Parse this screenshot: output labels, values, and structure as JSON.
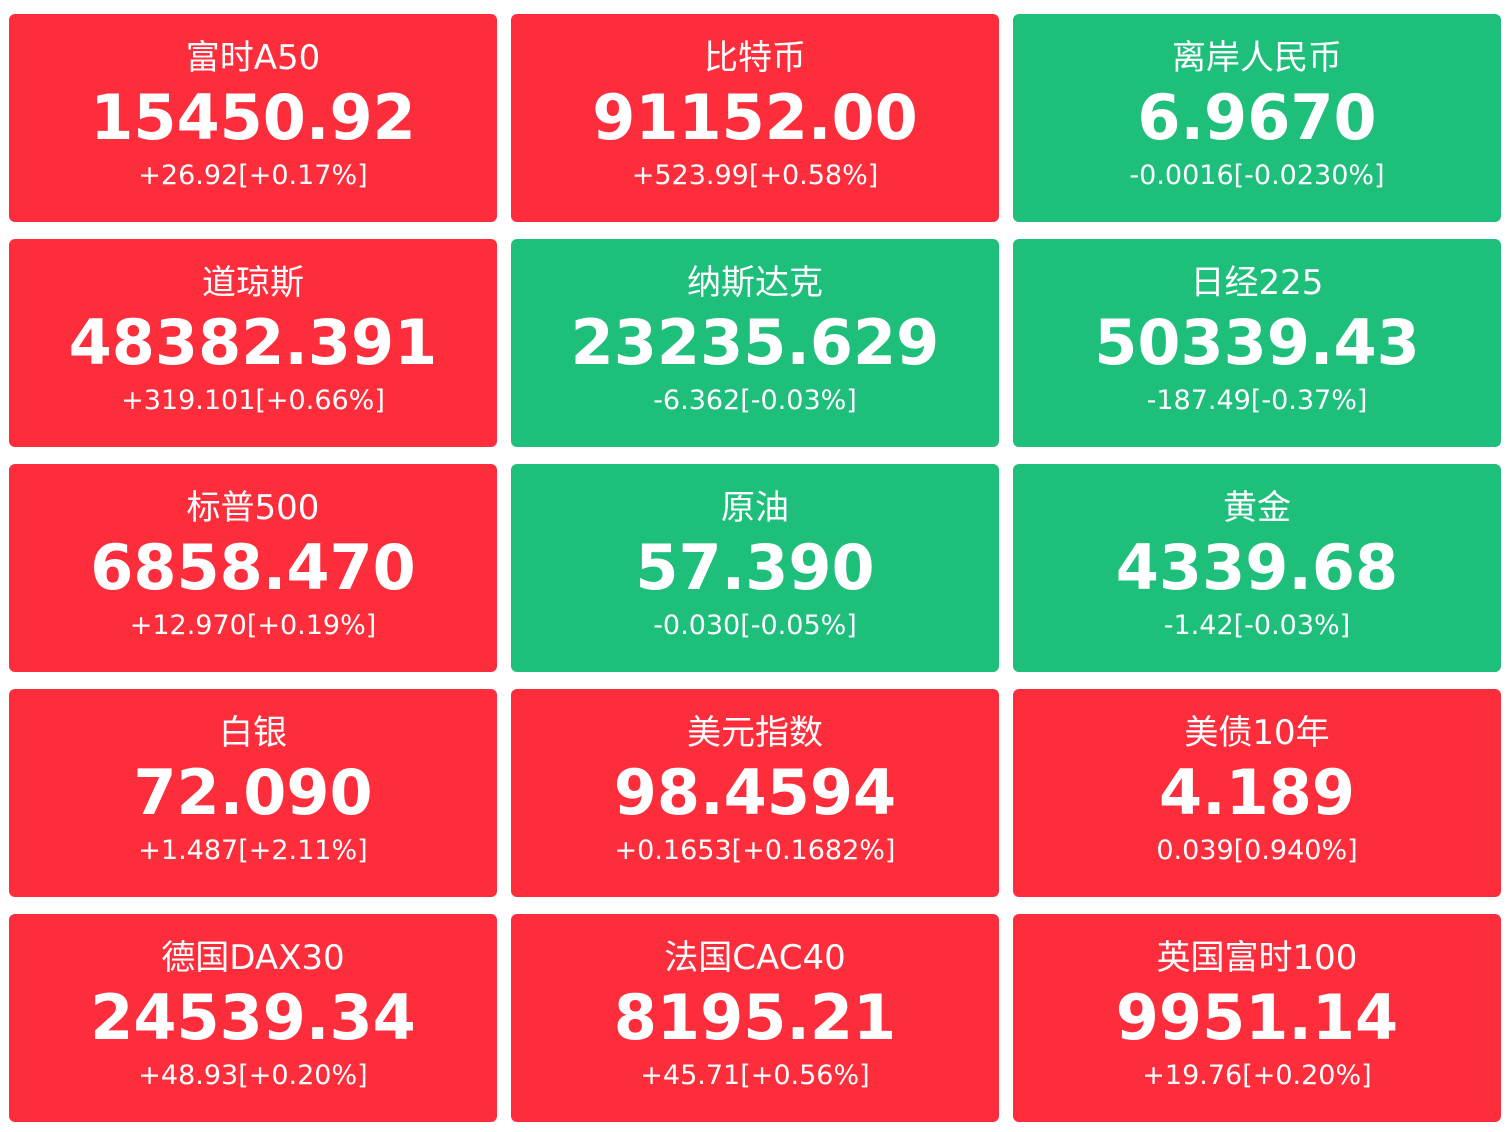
{
  "colors": {
    "up": "#fd2d3c",
    "down": "#1dbf7b",
    "text": "#ffffff"
  },
  "tiles": [
    {
      "name": "富时A50",
      "price": "15450.92",
      "change": "+26.92[+0.17%]",
      "trend": "up"
    },
    {
      "name": "比特币",
      "price": "91152.00",
      "change": "+523.99[+0.58%]",
      "trend": "up"
    },
    {
      "name": "离岸人民币",
      "price": "6.9670",
      "change": "-0.0016[-0.0230%]",
      "trend": "down"
    },
    {
      "name": "道琼斯",
      "price": "48382.391",
      "change": "+319.101[+0.66%]",
      "trend": "up"
    },
    {
      "name": "纳斯达克",
      "price": "23235.629",
      "change": "-6.362[-0.03%]",
      "trend": "down"
    },
    {
      "name": "日经225",
      "price": "50339.43",
      "change": "-187.49[-0.37%]",
      "trend": "down"
    },
    {
      "name": "标普500",
      "price": "6858.470",
      "change": "+12.970[+0.19%]",
      "trend": "up"
    },
    {
      "name": "原油",
      "price": "57.390",
      "change": "-0.030[-0.05%]",
      "trend": "down"
    },
    {
      "name": "黄金",
      "price": "4339.68",
      "change": "-1.42[-0.03%]",
      "trend": "down"
    },
    {
      "name": "白银",
      "price": "72.090",
      "change": "+1.487[+2.11%]",
      "trend": "up"
    },
    {
      "name": "美元指数",
      "price": "98.4594",
      "change": "+0.1653[+0.1682%]",
      "trend": "up"
    },
    {
      "name": "美债10年",
      "price": "4.189",
      "change": "0.039[0.940%]",
      "trend": "up"
    },
    {
      "name": "德国DAX30",
      "price": "24539.34",
      "change": "+48.93[+0.20%]",
      "trend": "up"
    },
    {
      "name": "法国CAC40",
      "price": "8195.21",
      "change": "+45.71[+0.56%]",
      "trend": "up"
    },
    {
      "name": "英国富时100",
      "price": "9951.14",
      "change": "+19.76[+0.20%]",
      "trend": "up"
    }
  ]
}
